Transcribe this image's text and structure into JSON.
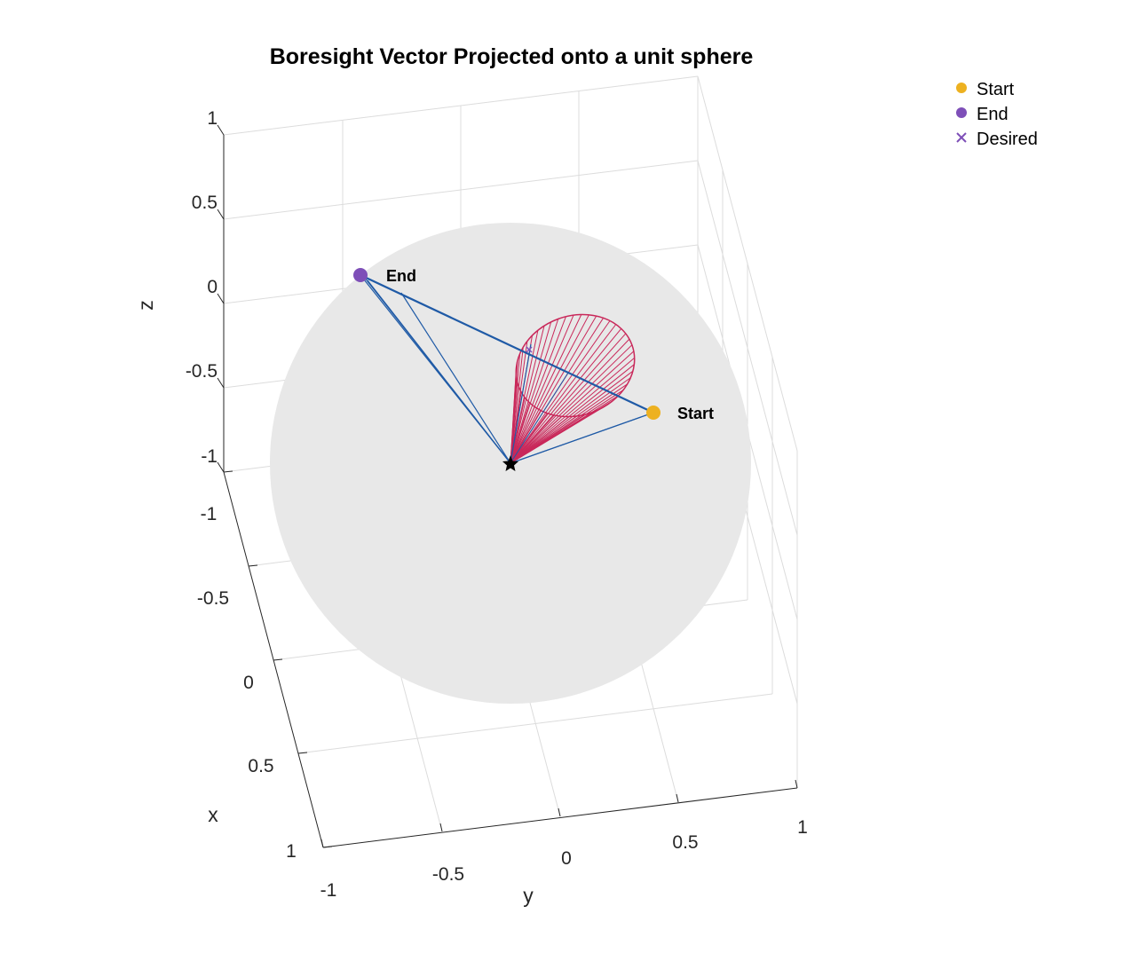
{
  "chart_data": {
    "type": "3d-line",
    "title": "Boresight Vector Projected onto a unit sphere",
    "xlabel": "x",
    "ylabel": "y",
    "zlabel": "z",
    "xlim": [
      -1,
      1
    ],
    "ylim": [
      -1,
      1
    ],
    "zlim": [
      -1,
      1
    ],
    "x_ticks": [
      "-1",
      "-0.5",
      "0",
      "0.5",
      "1"
    ],
    "y_ticks": [
      "-1",
      "-0.5",
      "0",
      "0.5",
      "1"
    ],
    "z_ticks": [
      "1",
      "0.5",
      "0",
      "-0.5",
      "-1"
    ],
    "grid": true,
    "legend_position": "top-right",
    "legend": [
      {
        "label": "Start",
        "marker": "dot",
        "color": "#EDB120"
      },
      {
        "label": "End",
        "marker": "dot",
        "color": "#7E4FB8"
      },
      {
        "label": "Desired",
        "marker": "x",
        "color": "#7E4FB8"
      }
    ],
    "annotations": {
      "start": "Start",
      "end": "End"
    },
    "colors": {
      "sphere": "#e8e8e8",
      "path": "#1f5aa6",
      "cone": "#c9285a",
      "start": "#EDB120",
      "end": "#7E4FB8",
      "origin": "#000000"
    }
  }
}
